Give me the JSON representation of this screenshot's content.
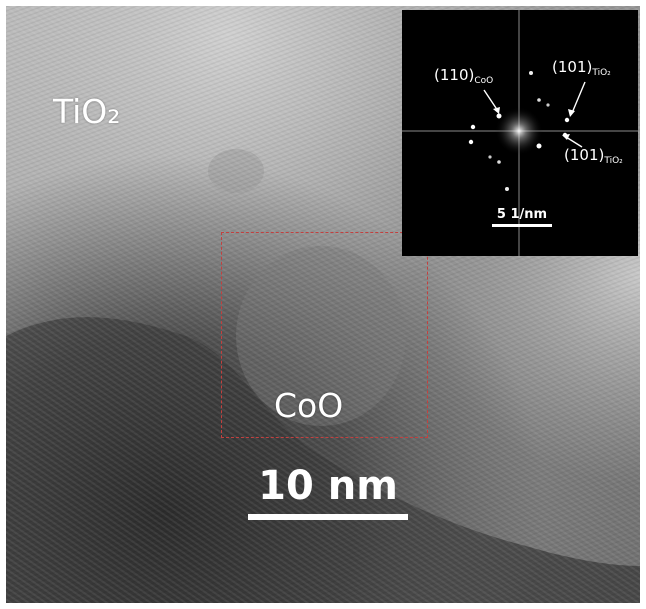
{
  "figure": {
    "material_label": "TiO₂",
    "particle_label": "CoO",
    "scale_bar_label": "10 nm"
  },
  "fft_inset": {
    "scale_bar_label": "5 1/nm",
    "reflections": [
      {
        "miller": "(110)",
        "phase": "CoO"
      },
      {
        "miller": "(101)",
        "phase": "TiO₂"
      },
      {
        "miller": "(101)",
        "phase": "TiO₂"
      }
    ]
  },
  "colors": {
    "roi_border": "#c2403f",
    "text": "#ffffff",
    "inset_background": "#000000"
  }
}
